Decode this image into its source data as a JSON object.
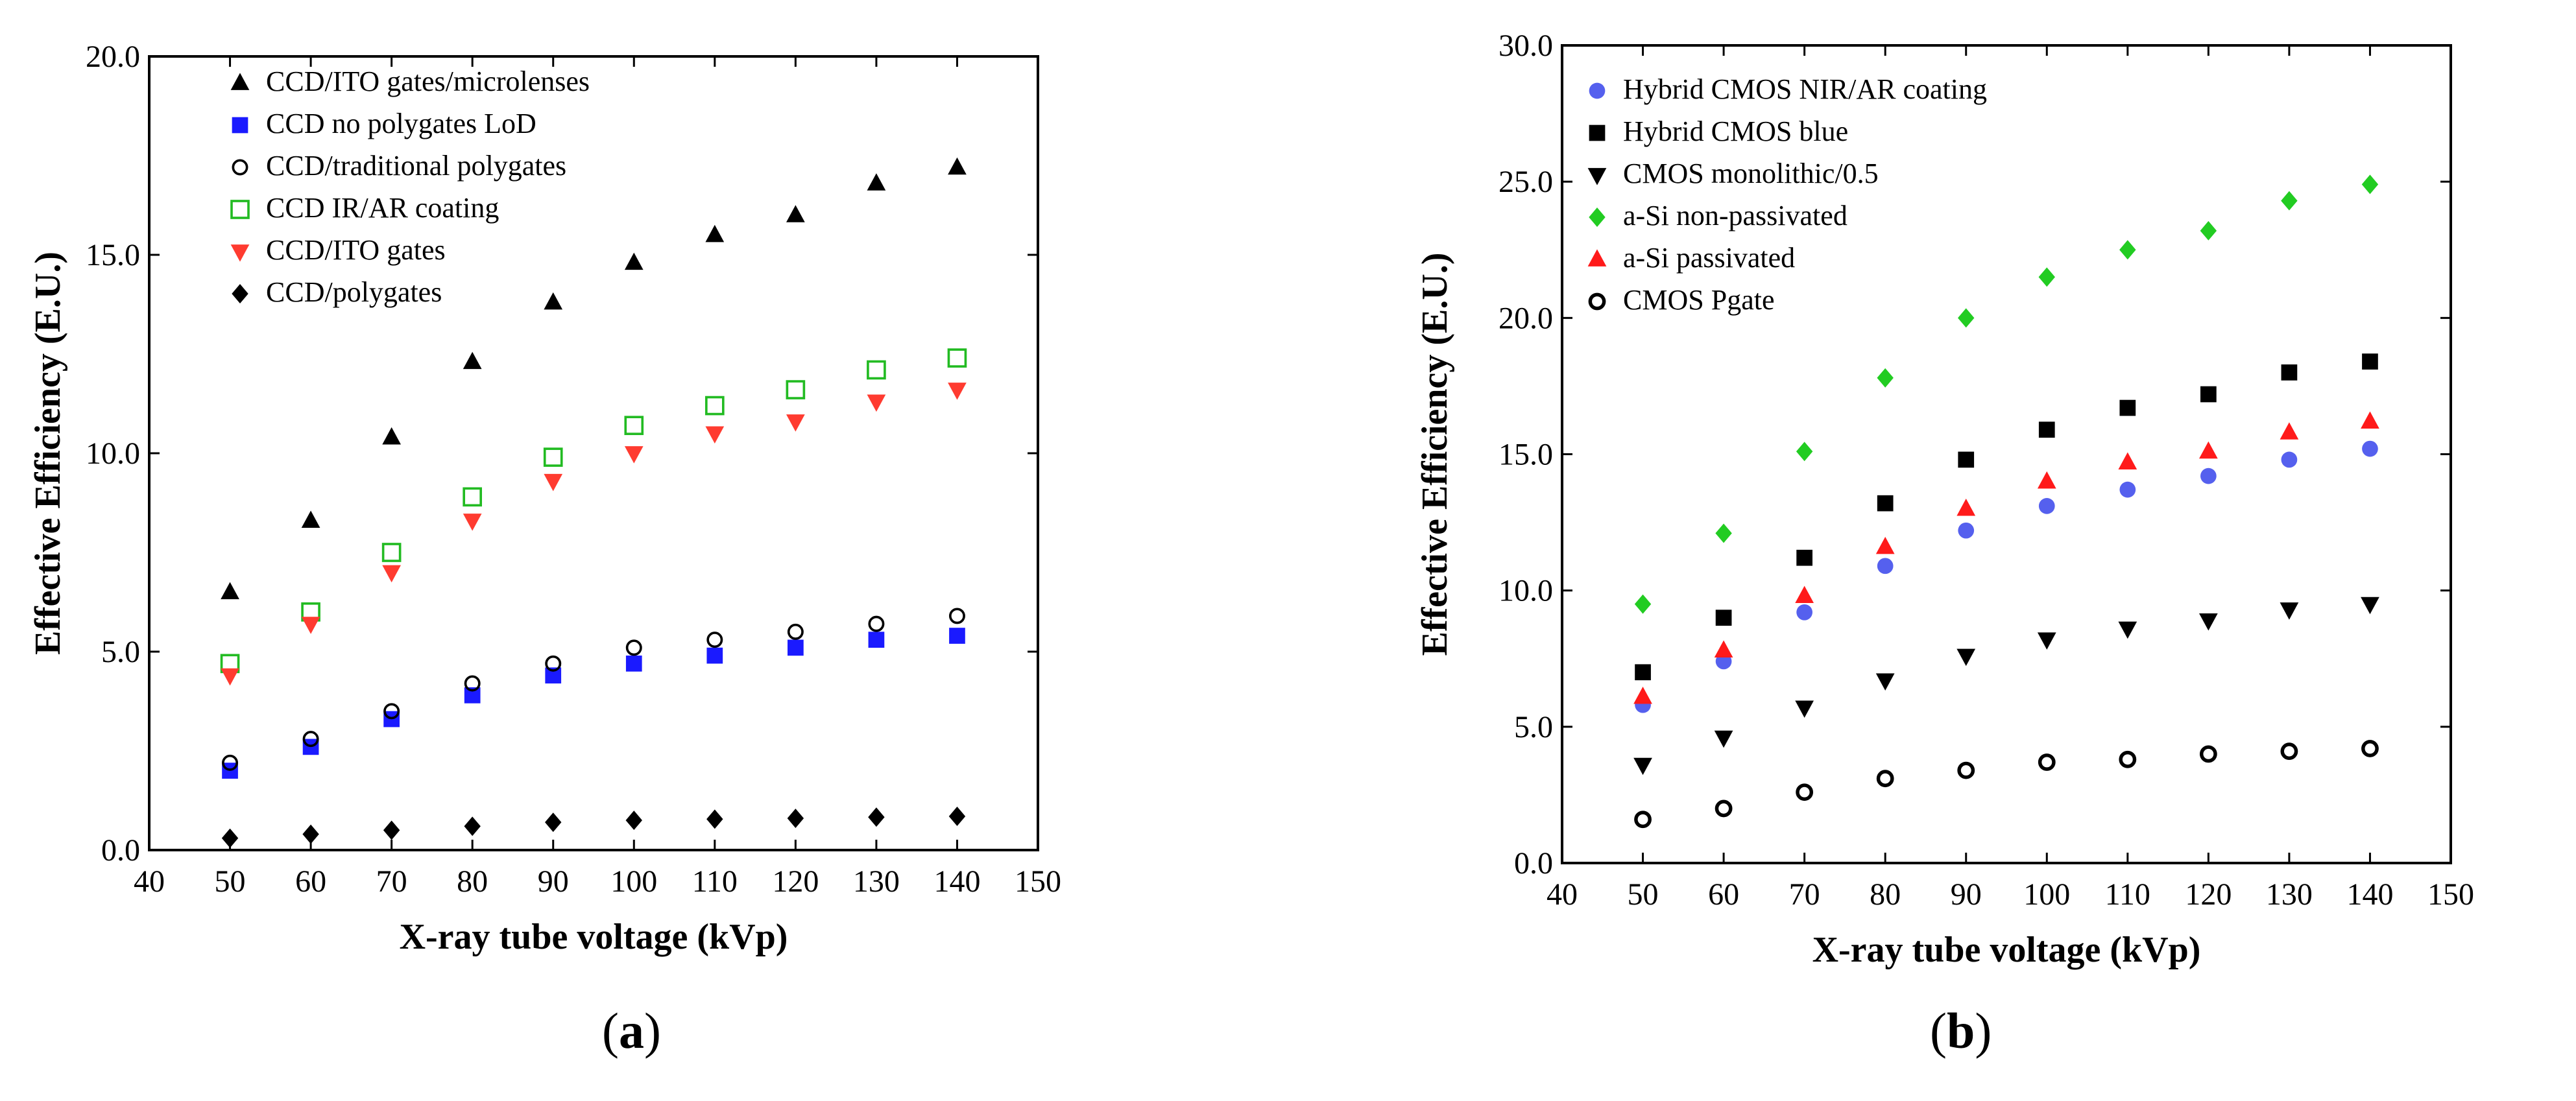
{
  "charts": {
    "a": {
      "caption_open": "(",
      "caption_letter": "a",
      "caption_close": ")"
    },
    "b": {
      "caption_open": "(",
      "caption_letter": "b",
      "caption_close": ")"
    }
  },
  "chart_data": [
    {
      "id": "a",
      "type": "scatter",
      "title": "",
      "xlabel": "X-ray tube voltage (kVp)",
      "ylabel": "Effective Efficiency (E.U.)",
      "xlim": [
        40,
        150
      ],
      "ylim": [
        0,
        20
      ],
      "xticks": [
        "40",
        "50",
        "60",
        "70",
        "80",
        "90",
        "100",
        "110",
        "120",
        "130",
        "140",
        "150"
      ],
      "yticks": [
        "0.0",
        "5.0",
        "10.0",
        "15.0",
        "20.0"
      ],
      "legend_position": "top-left",
      "x": [
        50,
        60,
        70,
        80,
        90,
        100,
        110,
        120,
        130,
        140
      ],
      "series": [
        {
          "name": "CCD/ITO gates/microlenses",
          "marker": "triangle-up",
          "color": "#000000",
          "fill": true,
          "values": [
            6.5,
            8.3,
            10.4,
            12.3,
            13.8,
            14.8,
            15.5,
            16.0,
            16.8,
            17.2
          ]
        },
        {
          "name": "CCD no polygates LoD",
          "marker": "square",
          "color": "#1a1aff",
          "fill": true,
          "values": [
            2.0,
            2.6,
            3.3,
            3.9,
            4.4,
            4.7,
            4.9,
            5.1,
            5.3,
            5.4
          ]
        },
        {
          "name": "CCD/traditional polygates",
          "marker": "circle",
          "color": "#000000",
          "fill": false,
          "values": [
            2.2,
            2.8,
            3.5,
            4.2,
            4.7,
            5.1,
            5.3,
            5.5,
            5.7,
            5.9
          ]
        },
        {
          "name": "CCD IR/AR coating",
          "marker": "square",
          "color": "#22bb22",
          "fill": false,
          "values": [
            4.7,
            6.0,
            7.5,
            8.9,
            9.9,
            10.7,
            11.2,
            11.6,
            12.1,
            12.4
          ]
        },
        {
          "name": "CCD/ITO gates",
          "marker": "triangle-down",
          "color": "#ff3b30",
          "fill": true,
          "values": [
            4.4,
            5.7,
            7.0,
            8.3,
            9.3,
            10.0,
            10.5,
            10.8,
            11.3,
            11.6
          ]
        },
        {
          "name": "CCD/polygates",
          "marker": "diamond",
          "color": "#000000",
          "fill": true,
          "values": [
            0.3,
            0.4,
            0.5,
            0.6,
            0.7,
            0.75,
            0.78,
            0.8,
            0.83,
            0.85
          ]
        }
      ]
    },
    {
      "id": "b",
      "type": "scatter",
      "title": "",
      "xlabel": "X-ray tube voltage (kVp)",
      "ylabel": "Effective Efficiency (E.U.)",
      "xlim": [
        40,
        150
      ],
      "ylim": [
        0,
        30
      ],
      "xticks": [
        "40",
        "50",
        "60",
        "70",
        "80",
        "90",
        "100",
        "110",
        "120",
        "130",
        "140",
        "150"
      ],
      "yticks": [
        "0.0",
        "5.0",
        "10.0",
        "15.0",
        "20.0",
        "25.0",
        "30.0"
      ],
      "legend_position": "top-left",
      "x": [
        50,
        60,
        70,
        80,
        90,
        100,
        110,
        120,
        130,
        140
      ],
      "series": [
        {
          "name": "Hybrid CMOS NIR/AR coating",
          "marker": "circle",
          "color": "#5560ee",
          "fill": true,
          "values": [
            5.8,
            7.4,
            9.2,
            10.9,
            12.2,
            13.1,
            13.7,
            14.2,
            14.8,
            15.2
          ]
        },
        {
          "name": "Hybrid CMOS blue",
          "marker": "square",
          "color": "#000000",
          "fill": true,
          "values": [
            7.0,
            9.0,
            11.2,
            13.2,
            14.8,
            15.9,
            16.7,
            17.2,
            18.0,
            18.4
          ]
        },
        {
          "name": "CMOS monolithic/0.5",
          "marker": "triangle-down",
          "color": "#000000",
          "fill": true,
          "values": [
            3.6,
            4.6,
            5.7,
            6.7,
            7.6,
            8.2,
            8.6,
            8.9,
            9.3,
            9.5
          ]
        },
        {
          "name": "a-Si non-passivated",
          "marker": "diamond",
          "color": "#22cc22",
          "fill": true,
          "values": [
            9.5,
            12.1,
            15.1,
            17.8,
            20.0,
            21.5,
            22.5,
            23.2,
            24.3,
            24.9
          ]
        },
        {
          "name": "a-Si passivated",
          "marker": "triangle-up",
          "color": "#ff1a1a",
          "fill": true,
          "values": [
            6.1,
            7.8,
            9.8,
            11.6,
            13.0,
            14.0,
            14.7,
            15.1,
            15.8,
            16.2
          ]
        },
        {
          "name": "CMOS Pgate",
          "marker": "circle",
          "color": "#000000",
          "fill": false,
          "thick": true,
          "values": [
            1.6,
            2.0,
            2.6,
            3.1,
            3.4,
            3.7,
            3.8,
            4.0,
            4.1,
            4.2
          ]
        }
      ]
    }
  ]
}
